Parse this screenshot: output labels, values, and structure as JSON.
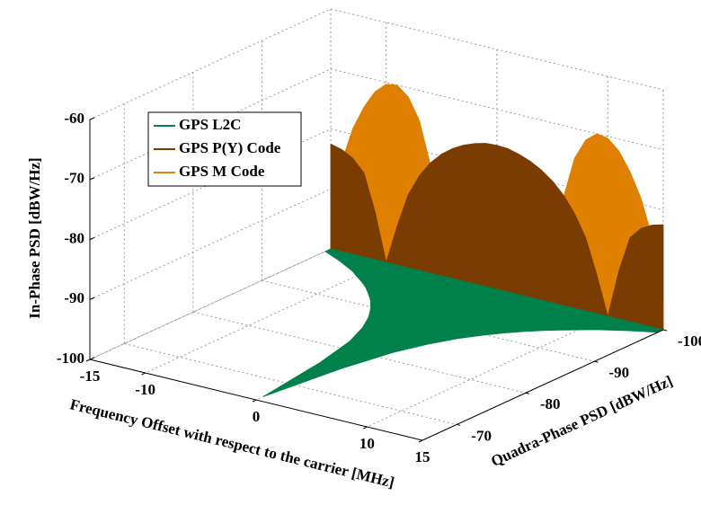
{
  "chart_data": {
    "type": "area3d",
    "x_label": "Frequency Offset with respect to the carrier [MHz]",
    "y_label": "Quadra-Phase PSD [dBW/Hz]",
    "z_label": "In-Phase PSD [dBW/Hz]",
    "x": [
      -15,
      -14,
      -13,
      -12,
      -11,
      -10,
      -9,
      -8,
      -7,
      -6,
      -5,
      -4,
      -3,
      -2,
      -1,
      0,
      1,
      2,
      3,
      4,
      5,
      6,
      7,
      8,
      9,
      10,
      11,
      12,
      13,
      14,
      15
    ],
    "series": [
      {
        "name": "GPS L2C",
        "color": "#00804a",
        "axis": "y",
        "values": [
          -99.2,
          -98.6,
          -98,
          -97.3,
          -96.6,
          -95.7,
          -94.8,
          -93.8,
          -92.6,
          -91.3,
          -89.7,
          -87.8,
          -85.3,
          -81.8,
          -75.7,
          -66,
          -75.7,
          -81.8,
          -85.3,
          -87.8,
          -89.7,
          -91.3,
          -92.6,
          -93.8,
          -94.8,
          -95.7,
          -96.6,
          -97.3,
          -98,
          -98.6,
          -99.2
        ]
      },
      {
        "name": "GPS P(Y) Code",
        "color": "#7a3c00",
        "axis": "z",
        "values": [
          -82.5,
          -83,
          -84,
          -86,
          -92,
          -100,
          -93.5,
          -87.8,
          -84.2,
          -81.6,
          -79.7,
          -78.3,
          -77.3,
          -76.6,
          -76.1,
          -76,
          -76.1,
          -76.6,
          -77.3,
          -78.3,
          -79.7,
          -81.6,
          -84.2,
          -87.8,
          -93.5,
          -100,
          -92,
          -86,
          -84,
          -83,
          -82.5
        ]
      },
      {
        "name": "GPS M Code",
        "color": "#e08000",
        "axis": "z",
        "values": [
          -95,
          -85,
          -79,
          -75,
          -72,
          -70.3,
          -70,
          -71.5,
          -75,
          -82,
          -95,
          -85,
          -83,
          -84,
          -88,
          -95,
          -88,
          -84,
          -83,
          -85,
          -95,
          -82,
          -75,
          -71.5,
          -70,
          -70.3,
          -72,
          -75,
          -79,
          -85,
          -95
        ]
      }
    ],
    "xlim": [
      -15,
      15
    ],
    "ylim": [
      -100,
      -65
    ],
    "zlim": [
      -100,
      -60
    ],
    "xticks": [
      -15,
      -10,
      0,
      10,
      15
    ],
    "yticks": [
      -100,
      -90,
      -80,
      -70
    ],
    "zticks": [
      -100,
      -90,
      -80,
      -70,
      -60
    ],
    "grid": true,
    "legend": "upper left"
  }
}
